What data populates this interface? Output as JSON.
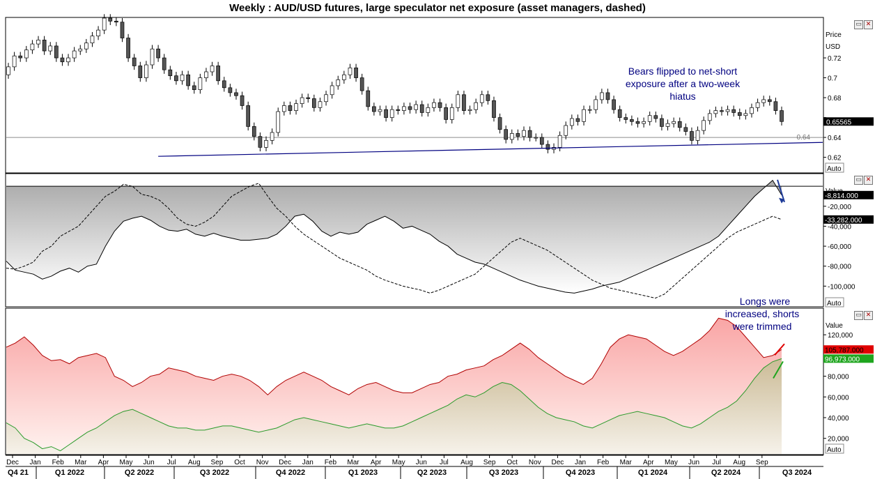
{
  "title": "Weekly : AUD/USD futures, large speculator net exposure (asset managers, dashed)",
  "auto_label": "Auto",
  "window_icons": [
    "restore-icon",
    "close-icon"
  ],
  "colors": {
    "up_candle": "#ffffff",
    "down_candle": "#555555",
    "trendline": "#000080",
    "annotation_text": "#000080",
    "flag_price": "#000000",
    "flag_long": "#1ea51e",
    "flag_short": "#e00000",
    "arrow_blue": "#1f3c99"
  },
  "chart_data": [
    {
      "id": "price",
      "type": "candlestick",
      "axis_title": [
        "Price",
        "USD"
      ],
      "ylim": [
        0.605,
        0.76
      ],
      "yticks": [
        0.62,
        0.64,
        0.66,
        0.68,
        0.7,
        0.72
      ],
      "ytick_labels": [
        "0.62",
        "0.64",
        "",
        "0.68",
        "0.7",
        "0.72"
      ],
      "hline": 0.64,
      "hline_label": "0.64",
      "last_value": "0.65565",
      "annotation": [
        "Bears flipped to net-short",
        "exposure after a two-week",
        "hiatus"
      ],
      "trendline": [
        [
          0,
          0.621
        ],
        [
          179,
          0.635
        ]
      ],
      "close": [
        0.711,
        0.722,
        0.72,
        0.728,
        0.734,
        0.738,
        0.727,
        0.732,
        0.72,
        0.716,
        0.72,
        0.727,
        0.729,
        0.735,
        0.742,
        0.748,
        0.76,
        0.757,
        0.756,
        0.74,
        0.72,
        0.712,
        0.7,
        0.713,
        0.729,
        0.72,
        0.708,
        0.702,
        0.697,
        0.703,
        0.692,
        0.688,
        0.7,
        0.706,
        0.712,
        0.697,
        0.69,
        0.685,
        0.682,
        0.672,
        0.651,
        0.641,
        0.63,
        0.637,
        0.645,
        0.666,
        0.672,
        0.667,
        0.674,
        0.68,
        0.679,
        0.67,
        0.676,
        0.683,
        0.692,
        0.698,
        0.703,
        0.71,
        0.7,
        0.687,
        0.671,
        0.666,
        0.668,
        0.66,
        0.668,
        0.667,
        0.671,
        0.668,
        0.673,
        0.665,
        0.67,
        0.675,
        0.67,
        0.658,
        0.67,
        0.683,
        0.667,
        0.668,
        0.675,
        0.683,
        0.677,
        0.66,
        0.648,
        0.638,
        0.644,
        0.641,
        0.647,
        0.64,
        0.64,
        0.633,
        0.628,
        0.63,
        0.642,
        0.652,
        0.659,
        0.656,
        0.668,
        0.668,
        0.678,
        0.685,
        0.678,
        0.668,
        0.66,
        0.658,
        0.656,
        0.654,
        0.656,
        0.662,
        0.659,
        0.651,
        0.654,
        0.656,
        0.65,
        0.646,
        0.637,
        0.647,
        0.657,
        0.664,
        0.667,
        0.666,
        0.668,
        0.665,
        0.662,
        0.664,
        0.67,
        0.675,
        0.678,
        0.676,
        0.667,
        0.656
      ],
      "open": [
        0.703,
        0.711,
        0.722,
        0.72,
        0.728,
        0.734,
        0.738,
        0.727,
        0.732,
        0.72,
        0.716,
        0.72,
        0.727,
        0.729,
        0.735,
        0.742,
        0.748,
        0.76,
        0.757,
        0.756,
        0.74,
        0.72,
        0.712,
        0.7,
        0.713,
        0.729,
        0.72,
        0.708,
        0.702,
        0.697,
        0.703,
        0.692,
        0.688,
        0.7,
        0.706,
        0.712,
        0.697,
        0.69,
        0.685,
        0.682,
        0.672,
        0.651,
        0.641,
        0.63,
        0.637,
        0.645,
        0.666,
        0.672,
        0.667,
        0.674,
        0.68,
        0.679,
        0.67,
        0.676,
        0.683,
        0.692,
        0.698,
        0.703,
        0.71,
        0.7,
        0.687,
        0.671,
        0.666,
        0.668,
        0.66,
        0.668,
        0.667,
        0.671,
        0.668,
        0.673,
        0.665,
        0.67,
        0.675,
        0.67,
        0.658,
        0.67,
        0.683,
        0.667,
        0.668,
        0.675,
        0.683,
        0.677,
        0.66,
        0.648,
        0.638,
        0.644,
        0.641,
        0.647,
        0.64,
        0.64,
        0.633,
        0.628,
        0.63,
        0.642,
        0.652,
        0.659,
        0.656,
        0.668,
        0.668,
        0.678,
        0.685,
        0.678,
        0.668,
        0.66,
        0.658,
        0.656,
        0.654,
        0.656,
        0.662,
        0.659,
        0.651,
        0.654,
        0.656,
        0.65,
        0.646,
        0.637,
        0.647,
        0.657,
        0.664,
        0.667,
        0.666,
        0.668,
        0.665,
        0.662,
        0.664,
        0.67,
        0.675,
        0.678,
        0.676,
        0.667
      ]
    },
    {
      "id": "net-exposure",
      "type": "line",
      "axis_title": "Value",
      "ylim": [
        -120000,
        12000
      ],
      "yticks": [
        -20000,
        -40000,
        -60000,
        -80000,
        -100000
      ],
      "ytick_labels": [
        "-20,000",
        "-40,000",
        "-60,000",
        "-80,000",
        "-100,000"
      ],
      "zero_line": 0,
      "last_labels": [
        "-8,814.000",
        "-33,282.000"
      ],
      "series": [
        {
          "style": "solid",
          "values": [
            -75000,
            -84000,
            -86000,
            -88000,
            -93000,
            -90000,
            -85000,
            -82000,
            -86000,
            -80000,
            -78000,
            -60000,
            -45000,
            -35000,
            -32000,
            -30000,
            -34000,
            -40000,
            -44000,
            -45000,
            -43000,
            -48000,
            -50000,
            -47000,
            -50000,
            -52000,
            -54000,
            -54000,
            -53000,
            -52000,
            -48000,
            -40000,
            -30000,
            -28000,
            -35000,
            -45000,
            -50000,
            -46000,
            -48000,
            -46000,
            -38000,
            -34000,
            -30000,
            -35000,
            -42000,
            -40000,
            -44000,
            -48000,
            -55000,
            -60000,
            -68000,
            -72000,
            -76000,
            -78000,
            -82000,
            -86000,
            -90000,
            -94000,
            -97000,
            -100000,
            -102000,
            -104000,
            -106000,
            -107000,
            -105000,
            -103000,
            -100000,
            -98000,
            -96000,
            -92000,
            -88000,
            -84000,
            -80000,
            -76000,
            -72000,
            -68000,
            -64000,
            -60000,
            -56000,
            -50000,
            -40000,
            -30000,
            -20000,
            -10000,
            -2000,
            6000,
            -8814
          ]
        },
        {
          "style": "dashed",
          "values": [
            -82000,
            -83000,
            -80000,
            -76000,
            -65000,
            -60000,
            -50000,
            -45000,
            -40000,
            -30000,
            -20000,
            -10000,
            -5000,
            2000,
            0,
            -8000,
            -10000,
            -14000,
            -22000,
            -32000,
            -38000,
            -40000,
            -36000,
            -30000,
            -20000,
            -10000,
            -5000,
            0,
            3000,
            -10000,
            -22000,
            -30000,
            -40000,
            -48000,
            -54000,
            -60000,
            -66000,
            -72000,
            -76000,
            -80000,
            -84000,
            -90000,
            -94000,
            -97000,
            -100000,
            -102000,
            -104000,
            -107000,
            -104000,
            -100000,
            -96000,
            -92000,
            -88000,
            -80000,
            -72000,
            -64000,
            -56000,
            -52000,
            -56000,
            -60000,
            -64000,
            -70000,
            -76000,
            -82000,
            -88000,
            -94000,
            -98000,
            -102000,
            -104000,
            -106000,
            -108000,
            -110000,
            -112000,
            -108000,
            -100000,
            -92000,
            -84000,
            -76000,
            -68000,
            -60000,
            -52000,
            -46000,
            -42000,
            -38000,
            -34000,
            -30000,
            -33282
          ]
        }
      ],
      "annotation_arrow": [
        [
          0.0,
          0.0
        ],
        [
          1.0,
          1.0
        ]
      ]
    },
    {
      "id": "longs-shorts",
      "type": "area",
      "axis_title": "Value",
      "ylim": [
        5000,
        145000
      ],
      "yticks": [
        20000,
        40000,
        60000,
        80000,
        100000,
        120000
      ],
      "ytick_labels": [
        "20,000",
        "40,000",
        "60,000",
        "80,000",
        "",
        "120,000"
      ],
      "last_labels": [
        "105,787.000",
        "96,973.000"
      ],
      "annotation": [
        "Longs were",
        "increased, shorts",
        "were trimmed"
      ],
      "series": [
        {
          "name": "shorts",
          "values": [
            108000,
            112000,
            118000,
            110000,
            100000,
            95000,
            96000,
            92000,
            98000,
            100000,
            102000,
            98000,
            80000,
            76000,
            70000,
            74000,
            80000,
            82000,
            88000,
            86000,
            84000,
            80000,
            78000,
            76000,
            80000,
            82000,
            80000,
            76000,
            70000,
            62000,
            70000,
            76000,
            80000,
            84000,
            80000,
            76000,
            70000,
            66000,
            62000,
            68000,
            72000,
            74000,
            70000,
            66000,
            64000,
            64000,
            68000,
            72000,
            74000,
            80000,
            82000,
            86000,
            88000,
            90000,
            96000,
            100000,
            106000,
            112000,
            106000,
            98000,
            92000,
            86000,
            80000,
            76000,
            72000,
            78000,
            92000,
            108000,
            116000,
            120000,
            118000,
            116000,
            110000,
            104000,
            100000,
            104000,
            110000,
            116000,
            124000,
            136000,
            134000,
            128000,
            118000,
            108000,
            98000,
            100000,
            105787
          ]
        },
        {
          "name": "longs",
          "values": [
            35000,
            30000,
            20000,
            16000,
            10000,
            12000,
            8000,
            14000,
            20000,
            26000,
            30000,
            36000,
            42000,
            46000,
            48000,
            44000,
            40000,
            36000,
            32000,
            30000,
            30000,
            28000,
            28000,
            30000,
            32000,
            32000,
            30000,
            28000,
            26000,
            28000,
            30000,
            34000,
            38000,
            40000,
            38000,
            36000,
            34000,
            32000,
            30000,
            32000,
            34000,
            32000,
            30000,
            30000,
            32000,
            36000,
            40000,
            44000,
            48000,
            52000,
            58000,
            62000,
            60000,
            64000,
            70000,
            74000,
            72000,
            66000,
            58000,
            50000,
            44000,
            40000,
            38000,
            36000,
            32000,
            30000,
            34000,
            38000,
            42000,
            44000,
            46000,
            44000,
            42000,
            40000,
            36000,
            32000,
            30000,
            34000,
            40000,
            46000,
            50000,
            56000,
            66000,
            78000,
            88000,
            94000,
            96973
          ]
        }
      ]
    }
  ],
  "x_axis": {
    "months": [
      "Dec",
      "Jan",
      "Feb",
      "Mar",
      "Apr",
      "May",
      "Jun",
      "Jul",
      "Aug",
      "Sep",
      "Oct",
      "Nov",
      "Dec",
      "Jan",
      "Feb",
      "Mar",
      "Apr",
      "May",
      "Jun",
      "Jul",
      "Aug",
      "Sep",
      "Oct",
      "Nov",
      "Dec",
      "Jan",
      "Feb",
      "Mar",
      "Apr",
      "May",
      "Jun",
      "Jul",
      "Aug",
      "Sep"
    ],
    "quarters": [
      "Q4 21",
      "Q1 2022",
      "Q2 2022",
      "Q3 2022",
      "Q4 2022",
      "Q1 2023",
      "Q2 2023",
      "Q3 2023",
      "Q4 2023",
      "Q1 2024",
      "Q2 2024",
      "Q3 2024"
    ]
  }
}
